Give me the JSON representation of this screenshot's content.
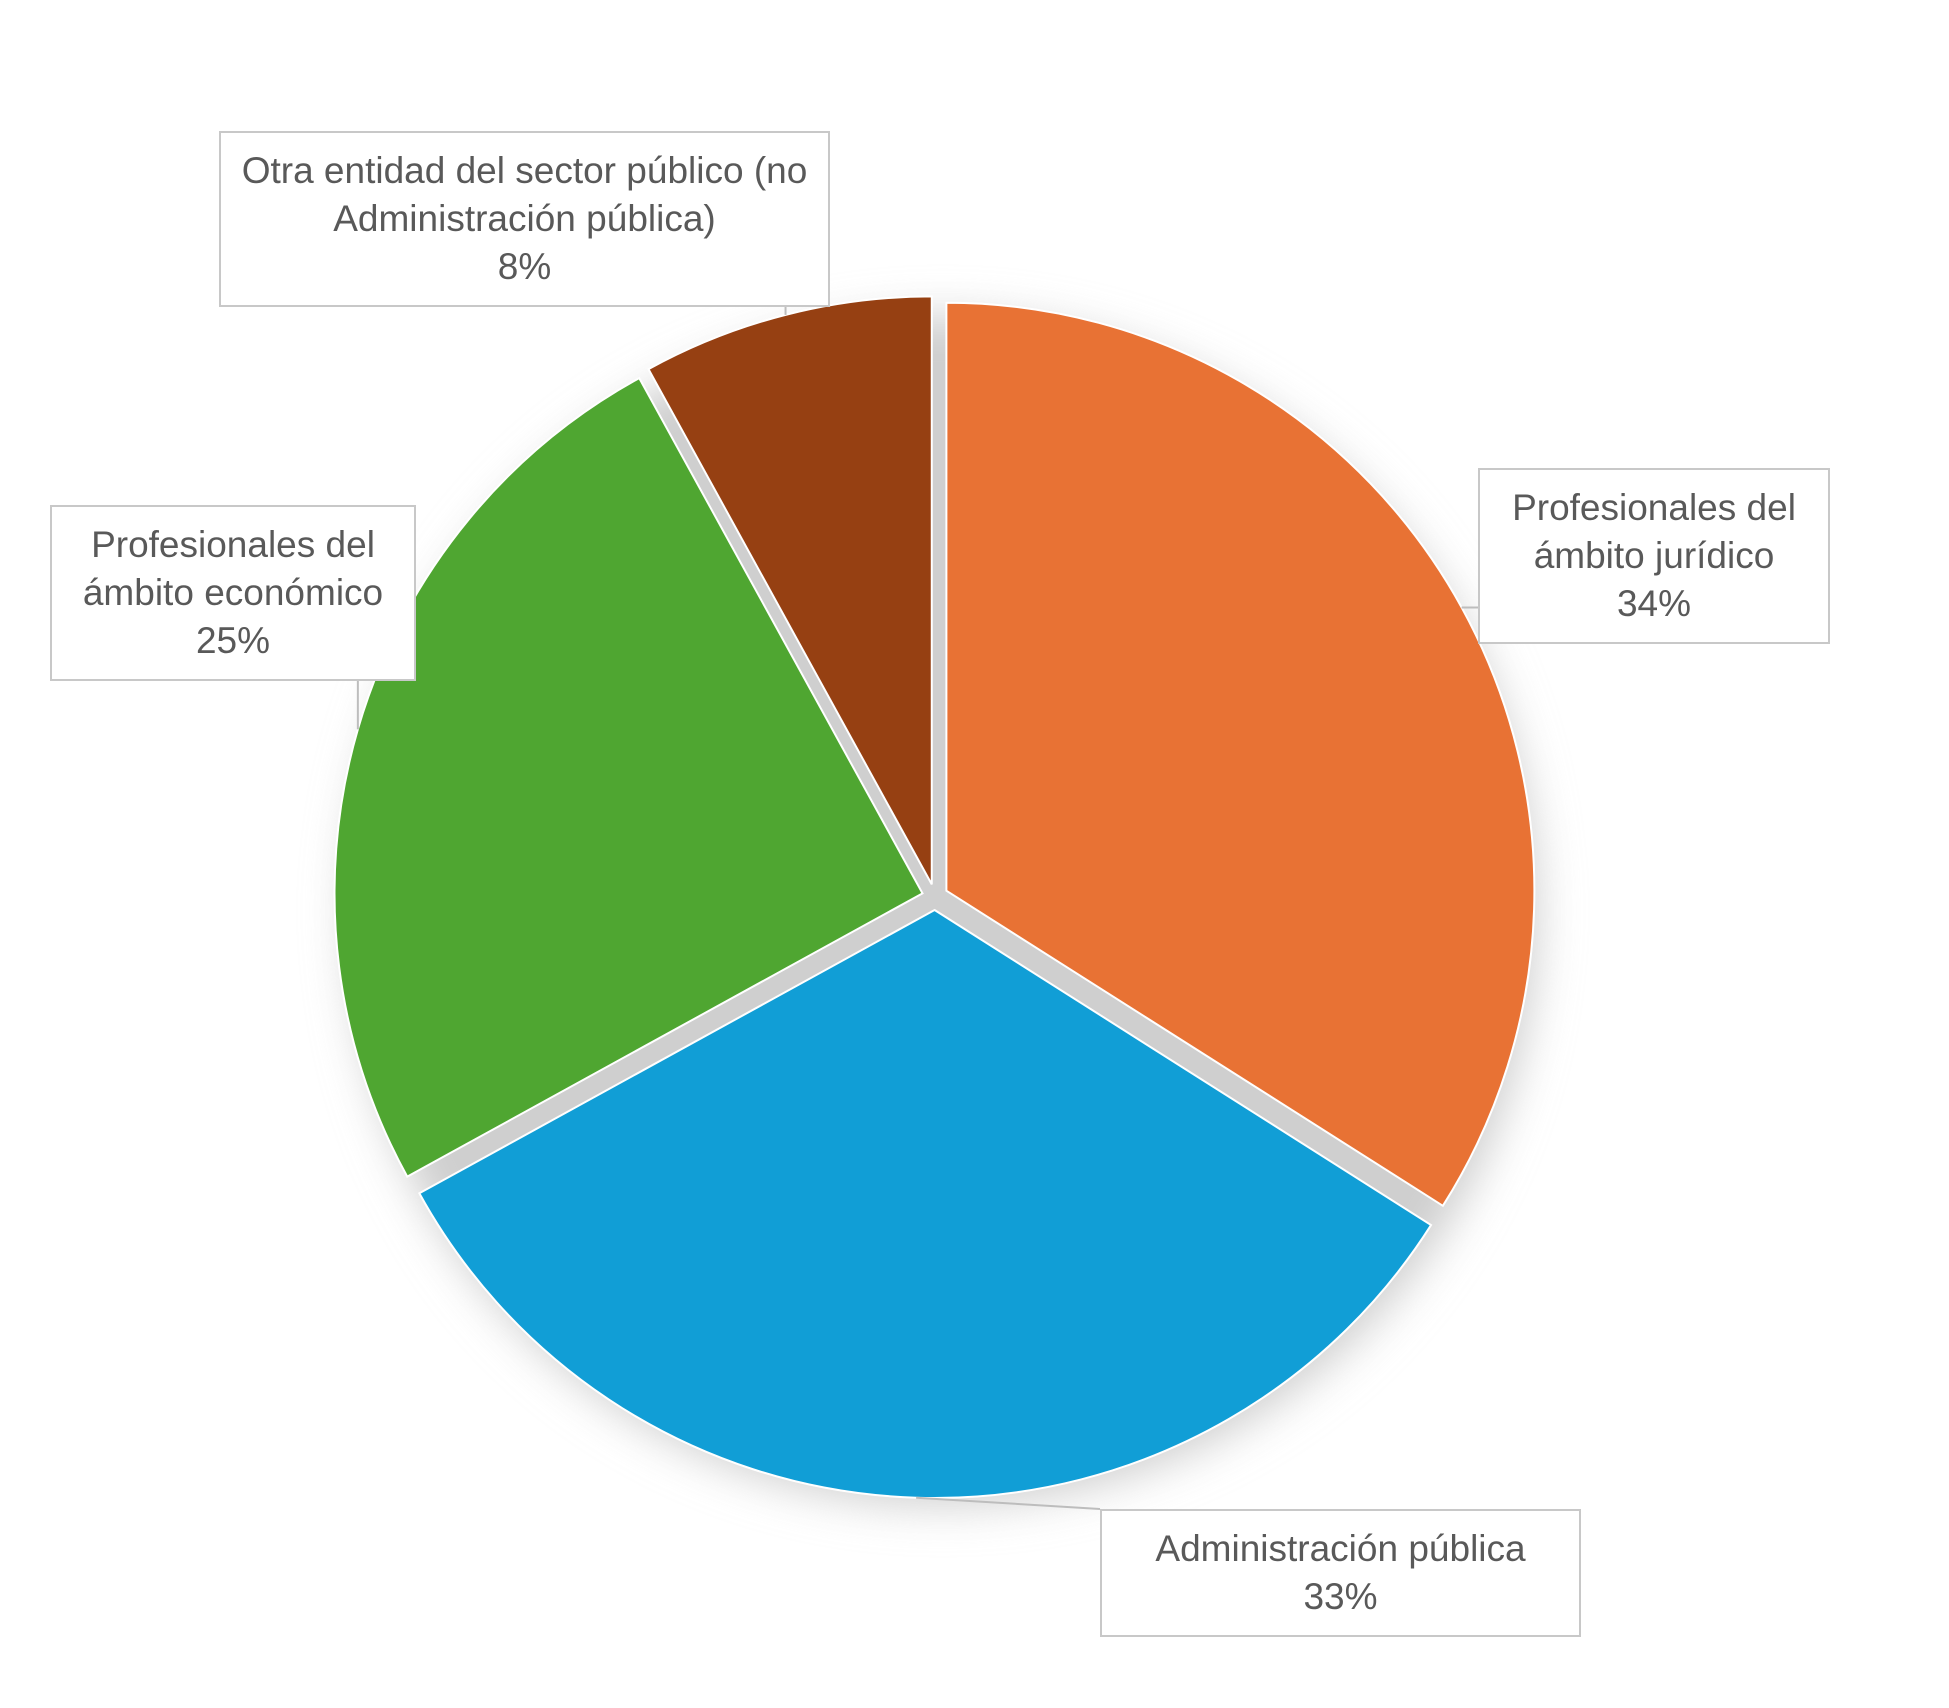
{
  "chart_data": {
    "type": "pie",
    "categories": [
      "Profesionales del ámbito jurídico",
      "Administración pública",
      "Profesionales del ámbito económico",
      "Otra entidad del sector público (no Administración pública)"
    ],
    "values": [
      34,
      33,
      25,
      8
    ],
    "value_labels": [
      "34%",
      "33%",
      "25%",
      "8%"
    ],
    "colors": [
      "#e87234",
      "#119ed6",
      "#4fa631",
      "#964012"
    ]
  }
}
